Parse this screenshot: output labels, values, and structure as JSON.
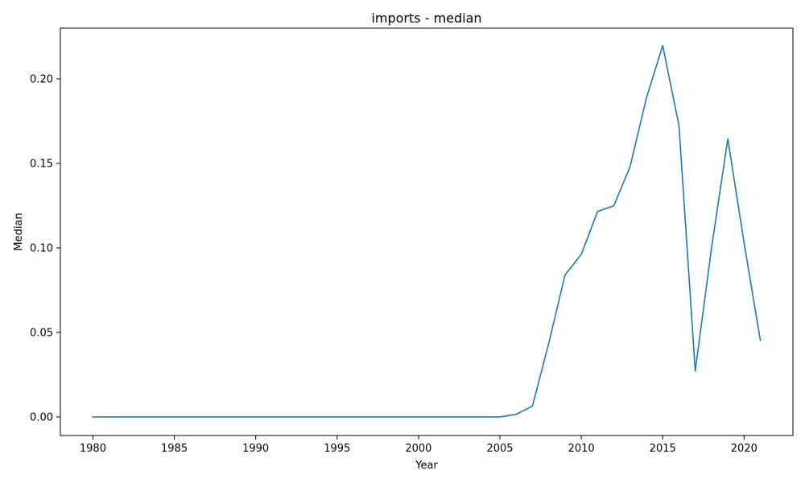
{
  "chart_data": {
    "type": "line",
    "title": "imports - median",
    "xlabel": "Year",
    "ylabel": "Median",
    "xlim": [
      1978,
      2023
    ],
    "ylim": [
      -0.011,
      0.23
    ],
    "xticks": [
      1980,
      1985,
      1990,
      1995,
      2000,
      2005,
      2010,
      2015,
      2020
    ],
    "yticks": [
      0.0,
      0.05,
      0.1,
      0.15,
      0.2
    ],
    "ytick_labels": [
      "0.00",
      "0.05",
      "0.10",
      "0.15",
      "0.20"
    ],
    "grid": false,
    "series": [
      {
        "color": "#1f77b4",
        "x": [
          1980,
          1981,
          1982,
          1983,
          1984,
          1985,
          1986,
          1987,
          1988,
          1989,
          1990,
          1991,
          1992,
          1993,
          1994,
          1995,
          1996,
          1997,
          1998,
          1999,
          2000,
          2001,
          2002,
          2003,
          2004,
          2005,
          2006,
          2007,
          2008,
          2009,
          2010,
          2011,
          2012,
          2013,
          2014,
          2015,
          2016,
          2017,
          2018,
          2019,
          2020,
          2021
        ],
        "y": [
          0,
          0,
          0,
          0,
          0,
          0,
          0,
          0,
          0,
          0,
          0,
          0,
          0,
          0,
          0,
          0,
          0,
          0,
          0,
          0,
          0,
          0,
          0,
          0,
          0,
          0,
          0.0015,
          0.0065,
          0.0435,
          0.084,
          0.0962,
          0.1215,
          0.125,
          0.1482,
          0.1887,
          0.2197,
          0.1724,
          0.0272,
          0.1,
          0.1645,
          0.103,
          0.0452
        ]
      }
    ]
  }
}
